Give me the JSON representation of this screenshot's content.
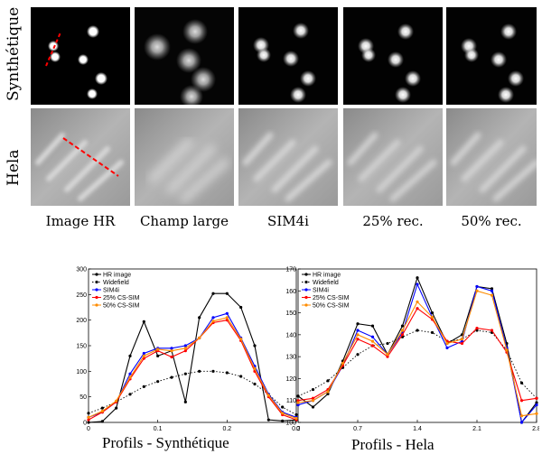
{
  "figure": {
    "row_labels": [
      "Synthétique",
      "Hela"
    ],
    "column_labels": [
      "Image HR",
      "Champ large",
      "SIM4i",
      "25% rec.",
      "50% rec."
    ]
  },
  "chart_data": [
    {
      "type": "line",
      "title": "Profils - Synthétique",
      "xlim": [
        0,
        0.3
      ],
      "ylim": [
        0,
        300
      ],
      "xticks": [
        "0",
        "0.1",
        "0.2",
        "0.3"
      ],
      "yticks": [
        "0",
        "50",
        "100",
        "150",
        "200",
        "250",
        "300"
      ],
      "legend_position": "top-left",
      "x": [
        0,
        0.02,
        0.04,
        0.06,
        0.08,
        0.1,
        0.12,
        0.14,
        0.16,
        0.18,
        0.2,
        0.22,
        0.24,
        0.26,
        0.28,
        0.3
      ],
      "series": [
        {
          "name": "HR image",
          "color": "#000000",
          "style": "solid",
          "values": [
            0,
            2,
            28,
            130,
            197,
            130,
            140,
            40,
            205,
            252,
            252,
            225,
            150,
            5,
            3,
            5
          ]
        },
        {
          "name": "Widefield",
          "color": "#000000",
          "style": "dotted",
          "values": [
            18,
            28,
            40,
            55,
            70,
            80,
            88,
            95,
            100,
            100,
            97,
            90,
            75,
            55,
            30,
            15
          ]
        },
        {
          "name": "SIM4i",
          "color": "#0000ff",
          "style": "solid",
          "values": [
            10,
            20,
            40,
            95,
            135,
            145,
            145,
            150,
            165,
            205,
            213,
            165,
            110,
            55,
            20,
            10
          ]
        },
        {
          "name": "25% CS-SIM",
          "color": "#ff0000",
          "style": "solid",
          "values": [
            5,
            20,
            40,
            85,
            125,
            140,
            128,
            140,
            165,
            195,
            200,
            160,
            100,
            50,
            15,
            5
          ]
        },
        {
          "name": "50% CS-SIM",
          "color": "#ff8c00",
          "style": "solid",
          "values": [
            10,
            22,
            42,
            88,
            130,
            143,
            140,
            145,
            165,
            198,
            205,
            163,
            105,
            53,
            18,
            8
          ]
        }
      ]
    },
    {
      "type": "line",
      "title": "Profils - Hela",
      "xlim": [
        0,
        2.8
      ],
      "ylim": [
        100,
        170
      ],
      "xticks": [
        "0",
        "0.7",
        "1.4",
        "2.1",
        "2.8"
      ],
      "yticks": [
        "100",
        "110",
        "120",
        "130",
        "140",
        "150",
        "160",
        "170"
      ],
      "legend_position": "top-left",
      "x": [
        0,
        0.175,
        0.35,
        0.525,
        0.7,
        0.875,
        1.05,
        1.225,
        1.4,
        1.575,
        1.75,
        1.925,
        2.1,
        2.275,
        2.45,
        2.625,
        2.8
      ],
      "series": [
        {
          "name": "HR image",
          "color": "#000000",
          "style": "solid",
          "values": [
            112,
            107,
            113,
            128,
            145,
            144,
            131,
            144,
            166,
            150,
            136,
            140,
            162,
            161,
            136,
            100,
            109
          ]
        },
        {
          "name": "Widefield",
          "color": "#000000",
          "style": "dotted",
          "values": [
            112,
            115,
            119,
            125,
            131,
            135,
            136,
            139,
            142,
            141,
            137,
            138,
            142,
            141,
            133,
            118,
            111
          ]
        },
        {
          "name": "SIM4i",
          "color": "#0000ff",
          "style": "solid",
          "values": [
            108,
            110,
            114,
            126,
            142,
            139,
            131,
            141,
            163,
            148,
            134,
            137,
            162,
            160,
            134,
            100,
            108
          ]
        },
        {
          "name": "25% CS-SIM",
          "color": "#ff0000",
          "style": "solid",
          "values": [
            110,
            111,
            115,
            126,
            138,
            135,
            130,
            140,
            152,
            147,
            137,
            136,
            143,
            142,
            132,
            110,
            111
          ]
        },
        {
          "name": "50% CS-SIM",
          "color": "#ff8c00",
          "style": "solid",
          "values": [
            109,
            110,
            114,
            127,
            140,
            137,
            131,
            142,
            155,
            148,
            136,
            138,
            160,
            158,
            133,
            103,
            104
          ]
        }
      ]
    }
  ]
}
